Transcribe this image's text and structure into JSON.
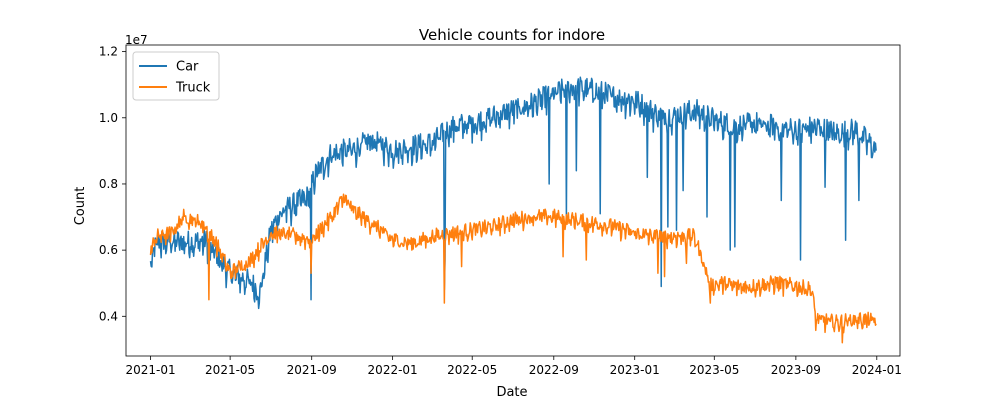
{
  "chart_data": {
    "type": "line",
    "title": "Vehicle counts for indore",
    "xlabel": "Date",
    "ylabel": "Count",
    "y_scale_note": "1e7",
    "x_ticks": [
      "2021-01",
      "2021-05",
      "2021-09",
      "2022-01",
      "2022-05",
      "2022-09",
      "2023-01",
      "2023-05",
      "2023-09",
      "2024-01"
    ],
    "y_ticks": [
      "0.4",
      "0.6",
      "0.8",
      "1.0",
      "1.2"
    ],
    "xlim": [
      "2020-11-25",
      "2024-02-05"
    ],
    "ylim": [
      2800000,
      12200000
    ],
    "grid": false,
    "legend_position": "top-left",
    "series": [
      {
        "name": "Car",
        "color": "#1f77b4",
        "anchors": [
          [
            "2021-01-01",
            5500000
          ],
          [
            "2021-01-10",
            6200000
          ],
          [
            "2021-02-01",
            6250000
          ],
          [
            "2021-03-01",
            6200000
          ],
          [
            "2021-03-25",
            6250000
          ],
          [
            "2021-04-15",
            5700000
          ],
          [
            "2021-05-01",
            5300000
          ],
          [
            "2021-06-01",
            5000000
          ],
          [
            "2021-06-15",
            4700000
          ],
          [
            "2021-07-01",
            6500000
          ],
          [
            "2021-07-15",
            7100000
          ],
          [
            "2021-08-10",
            7400000
          ],
          [
            "2021-08-28",
            7600000
          ],
          [
            "2021-09-05",
            8200000
          ],
          [
            "2021-10-01",
            8900000
          ],
          [
            "2021-11-01",
            9000000
          ],
          [
            "2021-12-01",
            9300000
          ],
          [
            "2022-01-01",
            9000000
          ],
          [
            "2022-02-01",
            9100000
          ],
          [
            "2022-03-01",
            9200000
          ],
          [
            "2022-04-01",
            9700000
          ],
          [
            "2022-05-01",
            9800000
          ],
          [
            "2022-06-01",
            10000000
          ],
          [
            "2022-07-01",
            10200000
          ],
          [
            "2022-08-01",
            10400000
          ],
          [
            "2022-09-01",
            10700000
          ],
          [
            "2022-10-01",
            10900000
          ],
          [
            "2022-11-01",
            10800000
          ],
          [
            "2022-12-01",
            10600000
          ],
          [
            "2023-01-01",
            10500000
          ],
          [
            "2023-02-01",
            10100000
          ],
          [
            "2023-03-01",
            10000000
          ],
          [
            "2023-04-01",
            10200000
          ],
          [
            "2023-05-01",
            9900000
          ],
          [
            "2023-06-01",
            9700000
          ],
          [
            "2023-07-01",
            9800000
          ],
          [
            "2023-08-01",
            9700000
          ],
          [
            "2023-09-01",
            9600000
          ],
          [
            "2023-10-01",
            9700000
          ],
          [
            "2023-11-01",
            9500000
          ],
          [
            "2023-12-01",
            9600000
          ],
          [
            "2023-12-31",
            9000000
          ]
        ],
        "noise": 420000,
        "dips": [
          [
            "2021-04-01",
            5700000
          ],
          [
            "2021-06-10",
            4500000
          ],
          [
            "2021-06-14",
            4400000
          ],
          [
            "2021-08-31",
            4500000
          ],
          [
            "2022-03-20",
            4800000
          ],
          [
            "2022-03-21",
            5700000
          ],
          [
            "2022-08-25",
            8000000
          ],
          [
            "2022-09-20",
            7000000
          ],
          [
            "2022-10-05",
            8400000
          ],
          [
            "2022-11-10",
            7100000
          ],
          [
            "2023-01-20",
            8200000
          ],
          [
            "2023-02-10",
            4900000
          ],
          [
            "2023-02-20",
            6700000
          ],
          [
            "2023-03-05",
            6600000
          ],
          [
            "2023-03-15",
            7800000
          ],
          [
            "2023-04-20",
            7000000
          ],
          [
            "2023-05-25",
            6000000
          ],
          [
            "2023-06-01",
            6100000
          ],
          [
            "2023-08-10",
            7500000
          ],
          [
            "2023-09-08",
            5700000
          ],
          [
            "2023-10-15",
            7900000
          ],
          [
            "2023-11-15",
            6300000
          ],
          [
            "2023-12-05",
            7500000
          ]
        ]
      },
      {
        "name": "Truck",
        "color": "#ff7f0e",
        "anchors": [
          [
            "2021-01-01",
            6000000
          ],
          [
            "2021-01-10",
            6400000
          ],
          [
            "2021-02-01",
            6500000
          ],
          [
            "2021-02-20",
            7000000
          ],
          [
            "2021-03-20",
            6800000
          ],
          [
            "2021-04-10",
            6200000
          ],
          [
            "2021-05-01",
            5300000
          ],
          [
            "2021-06-01",
            5700000
          ],
          [
            "2021-07-01",
            6500000
          ],
          [
            "2021-08-01",
            6450000
          ],
          [
            "2021-09-01",
            6300000
          ],
          [
            "2021-10-01",
            7000000
          ],
          [
            "2021-10-20",
            7600000
          ],
          [
            "2021-11-01",
            7200000
          ],
          [
            "2021-12-01",
            6800000
          ],
          [
            "2022-01-01",
            6300000
          ],
          [
            "2022-02-01",
            6200000
          ],
          [
            "2022-03-01",
            6400000
          ],
          [
            "2022-04-01",
            6500000
          ],
          [
            "2022-05-01",
            6600000
          ],
          [
            "2022-06-01",
            6700000
          ],
          [
            "2022-07-01",
            6900000
          ],
          [
            "2022-08-01",
            7000000
          ],
          [
            "2022-09-01",
            7000000
          ],
          [
            "2022-10-01",
            6900000
          ],
          [
            "2022-11-01",
            6800000
          ],
          [
            "2022-12-01",
            6700000
          ],
          [
            "2023-01-01",
            6500000
          ],
          [
            "2023-02-01",
            6400000
          ],
          [
            "2023-03-01",
            6400000
          ],
          [
            "2023-04-01",
            6400000
          ],
          [
            "2023-04-15",
            5600000
          ],
          [
            "2023-04-25",
            4900000
          ],
          [
            "2023-05-10",
            5000000
          ],
          [
            "2023-06-01",
            4900000
          ],
          [
            "2023-07-01",
            4900000
          ],
          [
            "2023-08-01",
            5000000
          ],
          [
            "2023-09-01",
            4900000
          ],
          [
            "2023-09-25",
            4800000
          ],
          [
            "2023-10-01",
            3900000
          ],
          [
            "2023-11-01",
            3800000
          ],
          [
            "2023-12-01",
            3900000
          ],
          [
            "2023-12-31",
            3850000
          ]
        ],
        "noise": 260000,
        "dips": [
          [
            "2021-03-30",
            4500000
          ],
          [
            "2021-08-31",
            5300000
          ],
          [
            "2022-03-20",
            4400000
          ],
          [
            "2022-04-15",
            5500000
          ],
          [
            "2022-09-15",
            5800000
          ],
          [
            "2022-10-20",
            5700000
          ],
          [
            "2023-02-05",
            5300000
          ],
          [
            "2023-02-15",
            5200000
          ],
          [
            "2023-03-20",
            5600000
          ],
          [
            "2023-04-25",
            4400000
          ],
          [
            "2023-11-10",
            3200000
          ]
        ]
      }
    ]
  }
}
